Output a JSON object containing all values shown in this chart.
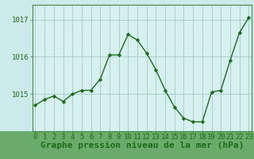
{
  "x": [
    0,
    1,
    2,
    3,
    4,
    5,
    6,
    7,
    8,
    9,
    10,
    11,
    12,
    13,
    14,
    15,
    16,
    17,
    18,
    19,
    20,
    21,
    22,
    23
  ],
  "y": [
    1014.7,
    1014.85,
    1014.95,
    1014.8,
    1015.0,
    1015.1,
    1015.1,
    1015.4,
    1016.05,
    1016.05,
    1016.6,
    1016.45,
    1016.1,
    1015.65,
    1015.1,
    1014.65,
    1014.35,
    1014.25,
    1014.25,
    1015.05,
    1015.1,
    1015.9,
    1016.65,
    1017.05
  ],
  "line_color": "#1a6b1a",
  "marker": "D",
  "marker_size": 2.2,
  "bg_color": "#cceaea",
  "plot_bg_color": "#d6f0f0",
  "grid_color": "#aacccc",
  "xlabel": "Graphe pression niveau de la mer (hPa)",
  "xlabel_fontsize": 8,
  "xlabel_color": "#1a6b1a",
  "ylabel_ticks": [
    1015,
    1016,
    1017
  ],
  "ylim": [
    1014.0,
    1017.4
  ],
  "xlim": [
    -0.3,
    23.3
  ],
  "tick_fontsize": 6.5,
  "tick_color": "#1a6b1a",
  "spine_color": "#448844",
  "linewidth": 1.0,
  "bottom_bg": "#6aaa6a"
}
